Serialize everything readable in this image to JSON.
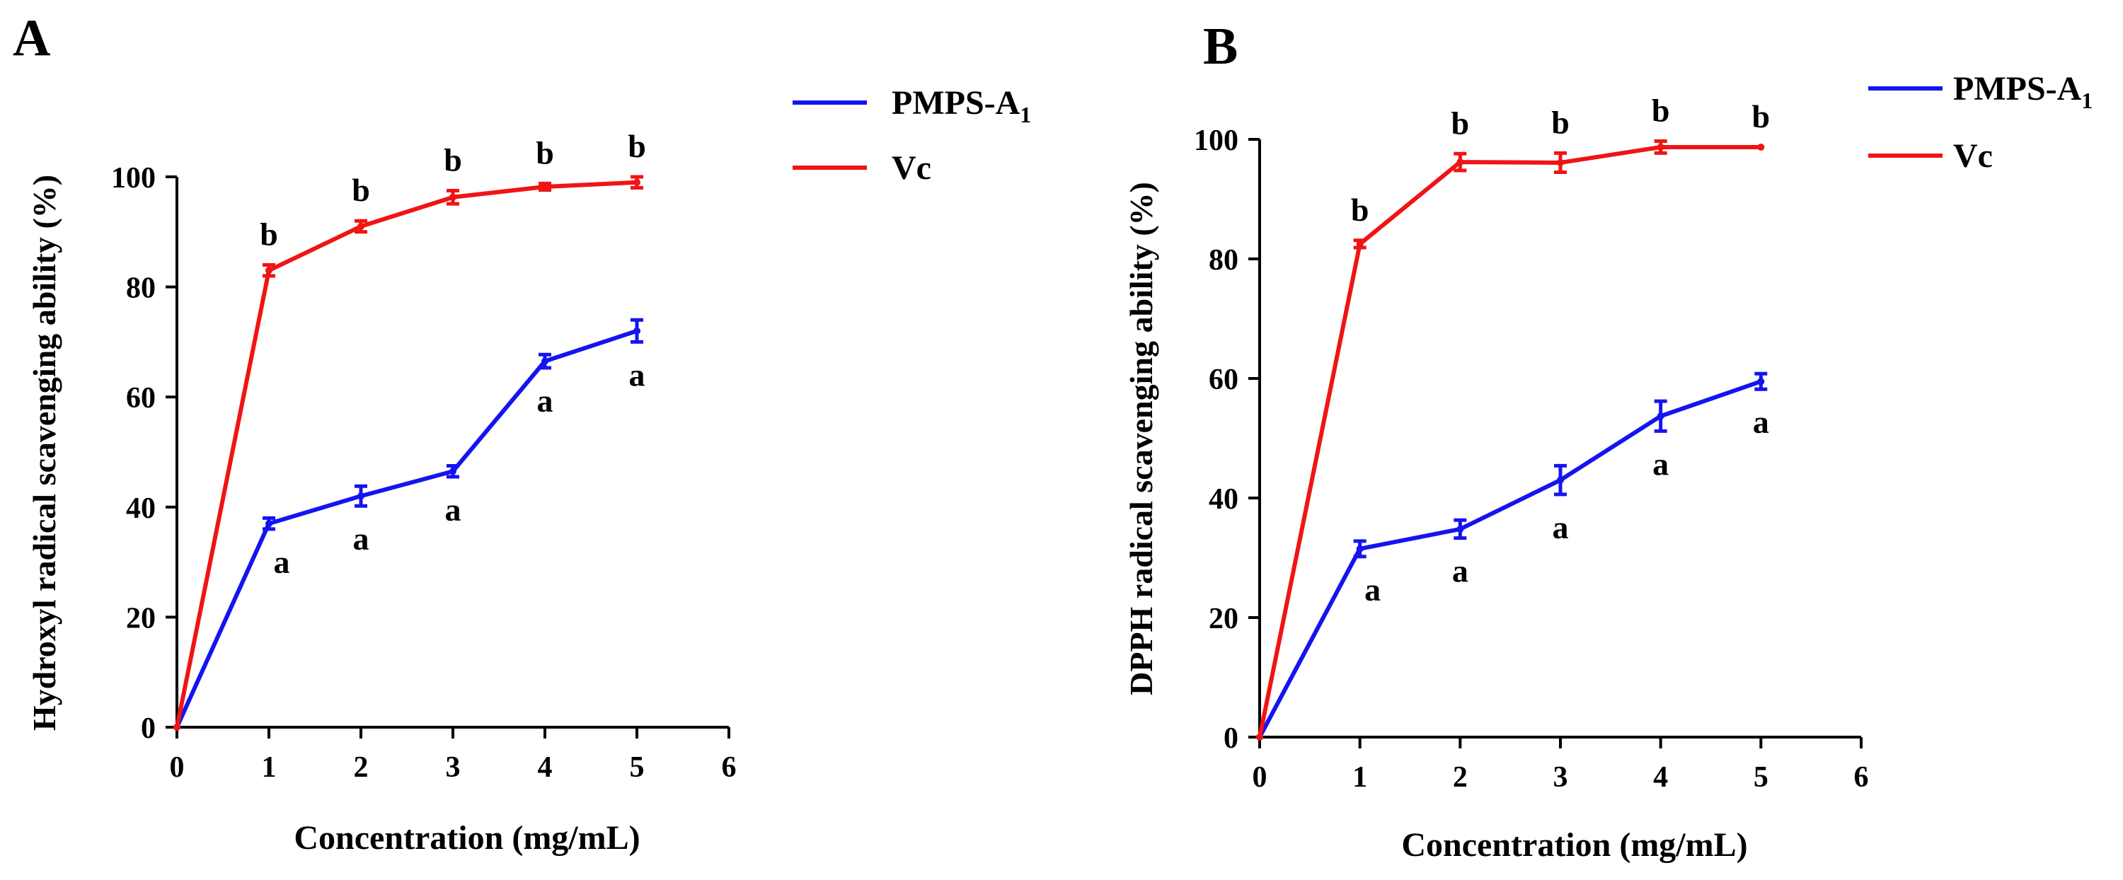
{
  "chart_data": [
    {
      "panel_label": "A",
      "type": "line",
      "xlabel": "Concentration (mg/mL)",
      "ylabel": "Hydroxyl radical scavenging ability (%)",
      "xlim": [
        0,
        6
      ],
      "ylim": [
        0,
        100
      ],
      "xticks": [
        0,
        1,
        2,
        3,
        4,
        5,
        6
      ],
      "yticks": [
        0,
        20,
        40,
        60,
        80,
        100
      ],
      "legend": [
        {
          "name": "PMPS-A",
          "sub": "1",
          "color": "#1414f0"
        },
        {
          "name": "Vc",
          "sub": "",
          "color": "#f01414"
        }
      ],
      "series": [
        {
          "name": "PMPS-A1",
          "color": "#1414f0",
          "x": [
            0,
            1,
            2,
            3,
            4,
            5
          ],
          "y": [
            0,
            37,
            42,
            46.5,
            66.5,
            72
          ],
          "err": [
            0,
            1,
            1.8,
            1,
            1.2,
            2
          ],
          "letters": [
            "",
            "a",
            "a",
            "a",
            "a",
            "a"
          ],
          "letter_pos": [
            "",
            "below",
            "below",
            "below",
            "below",
            "below"
          ]
        },
        {
          "name": "Vc",
          "color": "#f01414",
          "x": [
            0,
            1,
            2,
            3,
            4,
            5
          ],
          "y": [
            0,
            83,
            91,
            96.3,
            98.2,
            99
          ],
          "err": [
            0,
            1,
            1,
            1.2,
            0.6,
            1
          ],
          "letters": [
            "",
            "b",
            "b",
            "b",
            "b",
            "b"
          ],
          "letter_pos": [
            "",
            "above",
            "above",
            "above",
            "above",
            "above"
          ]
        }
      ]
    },
    {
      "panel_label": "B",
      "type": "line",
      "xlabel": "Concentration (mg/mL)",
      "ylabel": "DPPH radical scavenging ability (%)",
      "xlim": [
        0,
        6
      ],
      "ylim": [
        0,
        100
      ],
      "xticks": [
        0,
        1,
        2,
        3,
        4,
        5,
        6
      ],
      "yticks": [
        0,
        20,
        40,
        60,
        80,
        100
      ],
      "legend": [
        {
          "name": "PMPS-A",
          "sub": "1",
          "color": "#1414f0"
        },
        {
          "name": "Vc",
          "sub": "",
          "color": "#f01414"
        }
      ],
      "series": [
        {
          "name": "PMPS-A1",
          "color": "#1414f0",
          "x": [
            0,
            1,
            2,
            3,
            4,
            5
          ],
          "y": [
            0,
            31.5,
            34.8,
            43,
            53.7,
            59.5
          ],
          "err": [
            0,
            1.3,
            1.5,
            2.4,
            2.5,
            1.3
          ],
          "letters": [
            "",
            "a",
            "a",
            "a",
            "a",
            "a"
          ],
          "letter_pos": [
            "",
            "below",
            "below",
            "below",
            "below",
            "below"
          ]
        },
        {
          "name": "Vc",
          "color": "#f01414",
          "x": [
            0,
            1,
            2,
            3,
            4,
            5
          ],
          "y": [
            0,
            82.5,
            96.2,
            96.1,
            98.7,
            98.7
          ],
          "err": [
            0,
            0.6,
            1.4,
            1.6,
            1,
            0
          ],
          "letters": [
            "",
            "b",
            "b",
            "b",
            "b",
            "b"
          ],
          "letter_pos": [
            "",
            "above",
            "above",
            "above",
            "above",
            "above"
          ]
        }
      ]
    }
  ]
}
